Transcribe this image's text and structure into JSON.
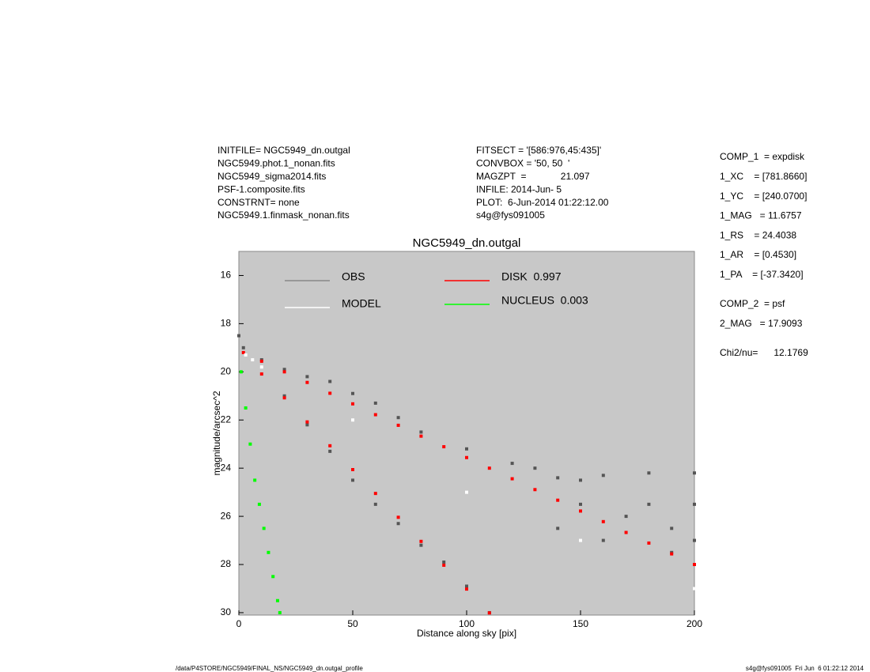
{
  "info_left": [
    "INITFILE= NGC5949_dn.outgal",
    "NGC5949.phot.1_nonan.fits",
    "NGC5949_sigma2014.fits",
    "PSF-1.composite.fits",
    "CONSTRNT= none",
    "NGC5949.1.finmask_nonan.fits"
  ],
  "info_middle": [
    "FITSECT = '[586:976,45:435]'",
    "CONVBOX = '50, 50  '",
    "MAGZPT  =             21.097",
    "INFILE: 2014-Jun- 5",
    "PLOT:  6-Jun-2014 01:22:12.00",
    "s4g@fys091005"
  ],
  "params": [
    [
      "COMP_1  = expdisk",
      "1_XC    = [781.8660]",
      "1_YC    = [240.0700]",
      "1_MAG   = 11.6757",
      "1_RS    = 24.4038",
      "1_AR    = [0.4530]",
      "1_PA    = [-37.3420]"
    ],
    [
      "COMP_2  = psf",
      "2_MAG   = 17.9093"
    ],
    [
      "Chi2/nu=      12.1769"
    ]
  ],
  "footer": {
    "left": "/data/P4STORE/NGC5949/FINAL_NS/NGC5949_dn.outgal_profile",
    "right": "s4g@fys091005  Fri Jun  6 01:22:12 2014"
  },
  "chart_data": {
    "type": "scatter",
    "title": "NGC5949_dn.outgal",
    "x_label": "Distance along sky [pix]",
    "y_label": "magnitude/arcsec^2",
    "xlim": [
      0,
      200
    ],
    "ylim": [
      30.1,
      15
    ],
    "xticks": [
      0,
      50,
      100,
      150,
      200
    ],
    "yticks": [
      16,
      18,
      20,
      22,
      24,
      26,
      28,
      30
    ],
    "background": "#c8c8c8",
    "series": [
      {
        "name": "OBS",
        "color": "#555555",
        "legend_color": "#888888",
        "x": [
          0,
          2,
          10,
          20,
          30,
          40,
          50,
          60,
          70,
          80,
          100,
          120,
          130,
          140,
          150,
          160,
          180,
          200,
          20,
          30,
          40,
          50,
          60,
          70,
          80,
          90,
          100,
          110,
          150,
          170,
          190,
          200,
          160,
          180,
          200,
          140,
          190
        ],
        "values": [
          18.5,
          19.0,
          19.5,
          19.9,
          20.2,
          20.4,
          20.9,
          21.3,
          21.9,
          22.5,
          23.2,
          23.8,
          24.0,
          24.4,
          24.5,
          24.3,
          24.2,
          24.2,
          21.0,
          22.2,
          23.3,
          24.5,
          25.5,
          26.3,
          27.2,
          27.9,
          28.9,
          30.0,
          25.5,
          26.0,
          26.5,
          27.0,
          27.0,
          25.5,
          25.5,
          26.5,
          27.5
        ]
      },
      {
        "name": "DISK  0.997",
        "color": "#ff0000",
        "legend_color": "#ff0000",
        "x": [
          2,
          10,
          20,
          30,
          40,
          50,
          60,
          70,
          80,
          90,
          100,
          110,
          120,
          130,
          140,
          150,
          160,
          170,
          180,
          190,
          200,
          10,
          20,
          30,
          40,
          50,
          60,
          70,
          80,
          90,
          100,
          110
        ],
        "values": [
          19.2,
          19.56,
          20.0,
          20.44,
          20.89,
          21.33,
          21.78,
          22.22,
          22.67,
          23.11,
          23.56,
          24.0,
          24.44,
          24.89,
          25.33,
          25.78,
          26.22,
          26.67,
          27.11,
          27.56,
          28.0,
          20.09,
          21.08,
          22.08,
          23.07,
          24.06,
          25.05,
          26.04,
          27.04,
          28.03,
          29.02,
          30.01
        ]
      },
      {
        "name": "MODEL",
        "color": "#ffffff",
        "legend_color": "#ffffff",
        "x": [
          3,
          6,
          10,
          50,
          100,
          150,
          200
        ],
        "values": [
          19.3,
          19.5,
          19.8,
          22.0,
          25.0,
          27.0,
          29.0
        ]
      },
      {
        "name": "NUCLEUS  0.003",
        "color": "#00ff00",
        "legend_color": "#00ff00",
        "x": [
          1,
          3,
          5,
          7,
          9,
          11,
          13,
          15,
          17,
          18
        ],
        "values": [
          20.0,
          21.5,
          23.0,
          24.5,
          25.5,
          26.5,
          27.5,
          28.5,
          29.5,
          30.0
        ]
      }
    ]
  }
}
